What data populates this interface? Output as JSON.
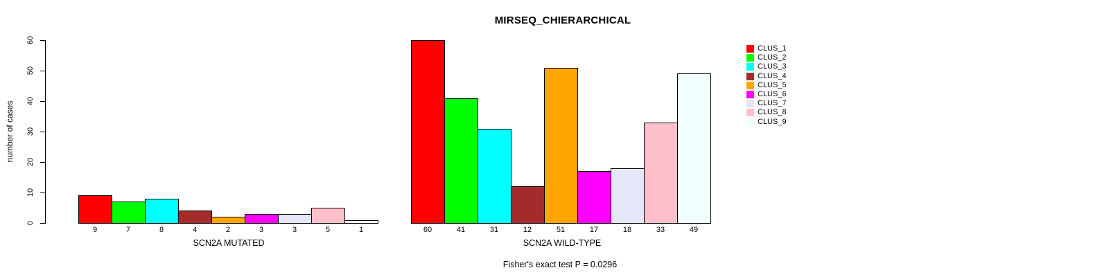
{
  "chart_data": {
    "type": "bar",
    "title": "MIRSEQ_CHIERARCHICAL",
    "ylabel": "number of cases",
    "ylim": [
      0,
      60
    ],
    "yticks": [
      0,
      10,
      20,
      30,
      40,
      50,
      60
    ],
    "grid": false,
    "legend_position": "right",
    "categories": [
      "CLUS_1",
      "CLUS_2",
      "CLUS_3",
      "CLUS_4",
      "CLUS_5",
      "CLUS_6",
      "CLUS_7",
      "CLUS_8",
      "CLUS_9"
    ],
    "colors": [
      "#FF0000",
      "#00FF00",
      "#00FFFF",
      "#A52A2A",
      "#FFA500",
      "#FF00FF",
      "#E6E6FA",
      "#FFC0CB",
      "#F0FFFF"
    ],
    "groups": [
      {
        "label": "SCN2A MUTATED",
        "values": [
          9,
          7,
          8,
          4,
          2,
          3,
          3,
          5,
          1
        ]
      },
      {
        "label": "SCN2A WILD-TYPE",
        "values": [
          60,
          41,
          31,
          12,
          51,
          17,
          18,
          33,
          49
        ]
      }
    ],
    "footnote": "Fisher's exact test P = 0.0296",
    "axis_color": "#000000",
    "background_color": "#FFFFFF"
  }
}
